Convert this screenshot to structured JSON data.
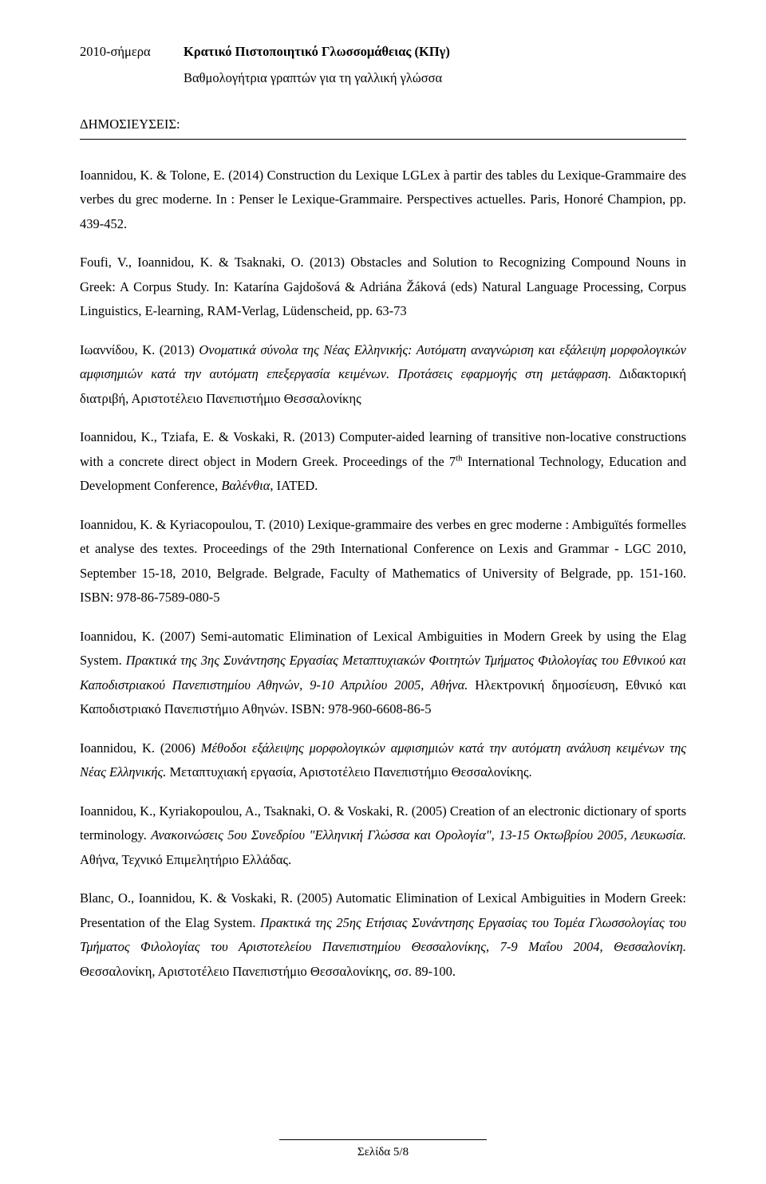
{
  "job": {
    "dates": "2010-σήμερα",
    "title": "Κρατικό Πιστοποιητικό Γλωσσομάθειας (ΚΠγ)",
    "desc": "Βαθμολογήτρια γραπτών για τη γαλλική γλώσσα"
  },
  "section_heading": "ΔΗΜΟΣΙΕΥΣΕΙΣ:",
  "pubs": {
    "p1a": "Ioannidou, K. & Tolone, E. (2014) Construction du Lexique LGLex à partir des tables du Lexique-Grammaire des verbes du grec moderne. In : Penser le Lexique-Grammaire. Perspectives actuelles. Paris, Honoré Champion, pp. 439-452.",
    "p2a": "Foufi, V., Ioannidou, K. & Tsaknaki, O. (2013) Obstacles and Solution to Recognizing Compound Nouns in Greek: A Corpus Study. In: Katarína Gajdošová & Adriána Žáková (eds) Natural Language Processing, Corpus Linguistics, E-learning, RAM-Verlag, Lüdenscheid, pp. 63-73",
    "p3a": "Ιωαννίδου, Κ. (2013) ",
    "p3b": "Ονοματικά σύνολα της Νέας Ελληνικής: Αυτόματη αναγνώριση και εξάλειψη μορφολογικών αμφισημιών κατά την αυτόματη επεξεργασία κειμένων. Προτάσεις εφαρμογής στη μετάφραση.",
    "p3c": " Διδακτορική διατριβή, Αριστοτέλειο Πανεπιστήμιο Θεσσαλονίκης",
    "p4a": "Ioannidou, K., Tziafa, E. & Voskaki, R. (2013) Computer-aided learning of transitive non-locative constructions with a concrete direct object in Modern Greek. Proceedings of the 7",
    "p4sup": "th",
    "p4b": " International Technology, Education and Development Conference, ",
    "p4c": "Βαλένθια",
    "p4d": ", IATED.",
    "p5a": "Ioannidou, K. & Kyriacopoulou, T. (2010) Lexique-grammaire des verbes en grec moderne : Ambiguïtés formelles et analyse des textes. Proceedings of the 29th International Conference on Lexis and Grammar - LGC 2010, September 15-18, 2010, Belgrade. Belgrade, Faculty of Mathematics of University of Belgrade, pp. 151-160. ISBN: 978-86-7589-080-5",
    "p6a": "Ioannidou, K. (2007) Semi-automatic Elimination of Lexical Ambiguities in Modern Greek by using the Elag System. ",
    "p6b": "Πρακτικά της 3ης Συνάντησης Εργασίας Μεταπτυχιακών Φοιτητών Τμήματος Φιλολογίας του Εθνικού και Καποδιστριακού Πανεπιστημίου Αθηνών, 9-10 Απριλίου 2005, Αθήνα.",
    "p6c": " Ηλεκτρονική δημοσίευση, Εθνικό και Καποδιστριακό Πανεπιστήμιο Αθηνών. ISBN: 978-960-6608-86-5",
    "p7a": "Ioannidou, K. (2006) ",
    "p7b": "Μέθοδοι εξάλειψης μορφολογικών αμφισημιών κατά την αυτόματη ανάλυση κειμένων της Νέας Ελληνικής.",
    "p7c": " Μεταπτυχιακή εργασία, Αριστοτέλειο Πανεπιστήμιο Θεσσαλονίκης.",
    "p8a": "Ioannidou, K., Kyriakopoulou, A., Tsaknaki, O. & Voskaki, R. (2005) Creation of an electronic dictionary of sports terminology. ",
    "p8b": "Ανακοινώσεις 5ου Συνεδρίου \"Ελληνική Γλώσσα και Ορολογία\", 13-15 Οκτωβρίου 2005, Λευκωσία.",
    "p8c": " Αθήνα, Τεχνικό Επιμελητήριο Ελλάδας.",
    "p9a": "Blanc, O., Ioannidou, K. & Voskaki, R. (2005) Automatic Elimination of Lexical Ambiguities in Modern Greek: Presentation of the Elag System. ",
    "p9b": "Πρακτικά της 25ης Ετήσιας Συνάντησης Εργασίας του Τομέα Γλωσσολογίας του Τμήματος Φιλολογίας του Αριστοτελείου Πανεπιστημίου Θεσσαλονίκης, 7-9 Μαΐου 2004, Θεσσαλονίκη.",
    "p9c": " Θεσσαλονίκη, Αριστοτέλειο Πανεπιστήμιο Θεσσαλονίκης, σσ. 89-100."
  },
  "footer": "Σελίδα 5/8"
}
